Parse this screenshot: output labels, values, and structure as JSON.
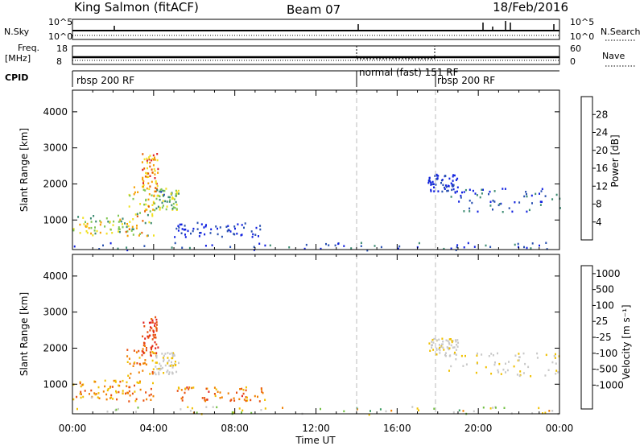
{
  "header": {
    "station": "King Salmon (fitACF)",
    "beam": "Beam 07",
    "date": "18/Feb/2016"
  },
  "status_panels": {
    "nsky_label": "N.Sky",
    "nsearch_label": "N.Search",
    "freq_label": "Freq.",
    "freq_unit": "[MHz]",
    "nave_label": "Nave",
    "cpid_label": "CPID",
    "nsky_ticks": [
      "10^5",
      "10^0"
    ],
    "nsearch_ticks": [
      "10^5",
      "10^0"
    ],
    "freq_ticks": [
      "18",
      "8"
    ],
    "nave_ticks": [
      "60",
      "0"
    ],
    "cpid_modes": [
      {
        "label": "rbsp 200 RF",
        "start_hour": 0
      },
      {
        "label": "normal (fast) 151 RF",
        "start_hour": 14
      },
      {
        "label": "rbsp 200 RF",
        "start_hour": 18
      }
    ]
  },
  "chart_data": [
    {
      "type": "heatmap",
      "name": "power",
      "ylabel": "Slant Range [km]",
      "xlabel": "",
      "ylim": [
        180,
        4600
      ],
      "xlim": [
        0,
        24
      ],
      "y_ticks": [
        "1000",
        "2000",
        "3000",
        "4000"
      ],
      "colorbar": {
        "label": "Power [dB]",
        "ticks": [
          "4",
          "8",
          "12",
          "16",
          "20",
          "24",
          "28"
        ],
        "colors": [
          "#1020e0",
          "#2850b0",
          "#3a8a70",
          "#7fc650",
          "#f0e020",
          "#f6a000",
          "#e86000",
          "#e02020"
        ]
      },
      "scatter_regions": [
        {
          "t": [
            0.0,
            2.8
          ],
          "r": [
            600,
            1150
          ],
          "pal": [
            0.25,
            0.7
          ]
        },
        {
          "t": [
            2.6,
            4.0
          ],
          "r": [
            550,
            2000
          ],
          "pal": [
            0.3,
            0.8
          ]
        },
        {
          "t": [
            3.4,
            4.2
          ],
          "r": [
            1800,
            2900
          ],
          "pal": [
            0.5,
            1.0
          ]
        },
        {
          "t": [
            4.0,
            5.2
          ],
          "r": [
            1300,
            1900
          ],
          "pal": [
            0.2,
            0.6
          ]
        },
        {
          "t": [
            5.0,
            9.5
          ],
          "r": [
            550,
            950
          ],
          "pal": [
            0.0,
            0.25
          ]
        },
        {
          "t": [
            0.0,
            24.0
          ],
          "r": [
            180,
            400
          ],
          "pal": [
            0.0,
            0.35
          ]
        },
        {
          "t": [
            17.5,
            19.0
          ],
          "r": [
            1800,
            2300
          ],
          "pal": [
            0.0,
            0.2
          ]
        },
        {
          "t": [
            18.5,
            24.0
          ],
          "r": [
            1250,
            1900
          ],
          "pal": [
            0.0,
            0.35
          ]
        }
      ]
    },
    {
      "type": "heatmap",
      "name": "velocity",
      "ylabel": "Slant Range [km]",
      "xlabel": "Time UT",
      "ylim": [
        180,
        4600
      ],
      "xlim": [
        0,
        24
      ],
      "x_ticks": [
        "00:00",
        "04:00",
        "08:00",
        "12:00",
        "16:00",
        "20:00",
        "00:00"
      ],
      "y_ticks": [
        "1000",
        "2000",
        "3000",
        "4000"
      ],
      "colorbar": {
        "label": "Velocity [m s⁻¹]",
        "ticks": [
          "1000",
          "500",
          "100",
          "25",
          "-25",
          "-100",
          "-500",
          "-1000"
        ],
        "colors": [
          "#1020e0",
          "#2a60b0",
          "#3a9a60",
          "#70c040",
          "#c8c8c8",
          "#f0c000",
          "#f08000",
          "#e85010",
          "#e02020"
        ]
      },
      "scatter_regions": [
        {
          "t": [
            0.0,
            2.8
          ],
          "r": [
            600,
            1150
          ],
          "pal": [
            0.55,
            0.85
          ]
        },
        {
          "t": [
            2.6,
            4.0
          ],
          "r": [
            550,
            2000
          ],
          "pal": [
            0.6,
            0.9
          ]
        },
        {
          "t": [
            3.4,
            4.2
          ],
          "r": [
            1800,
            2900
          ],
          "pal": [
            0.75,
            1.0
          ]
        },
        {
          "t": [
            4.0,
            5.2
          ],
          "r": [
            1300,
            1900
          ],
          "pal": [
            0.45,
            0.6
          ]
        },
        {
          "t": [
            5.0,
            9.5
          ],
          "r": [
            550,
            950
          ],
          "pal": [
            0.6,
            0.9
          ]
        },
        {
          "t": [
            0.0,
            24.0
          ],
          "r": [
            180,
            400
          ],
          "pal": [
            0.3,
            0.7
          ]
        },
        {
          "t": [
            17.5,
            19.0
          ],
          "r": [
            1800,
            2300
          ],
          "pal": [
            0.45,
            0.6
          ]
        },
        {
          "t": [
            18.5,
            24.0
          ],
          "r": [
            1250,
            1900
          ],
          "pal": [
            0.45,
            0.62
          ]
        }
      ]
    }
  ]
}
